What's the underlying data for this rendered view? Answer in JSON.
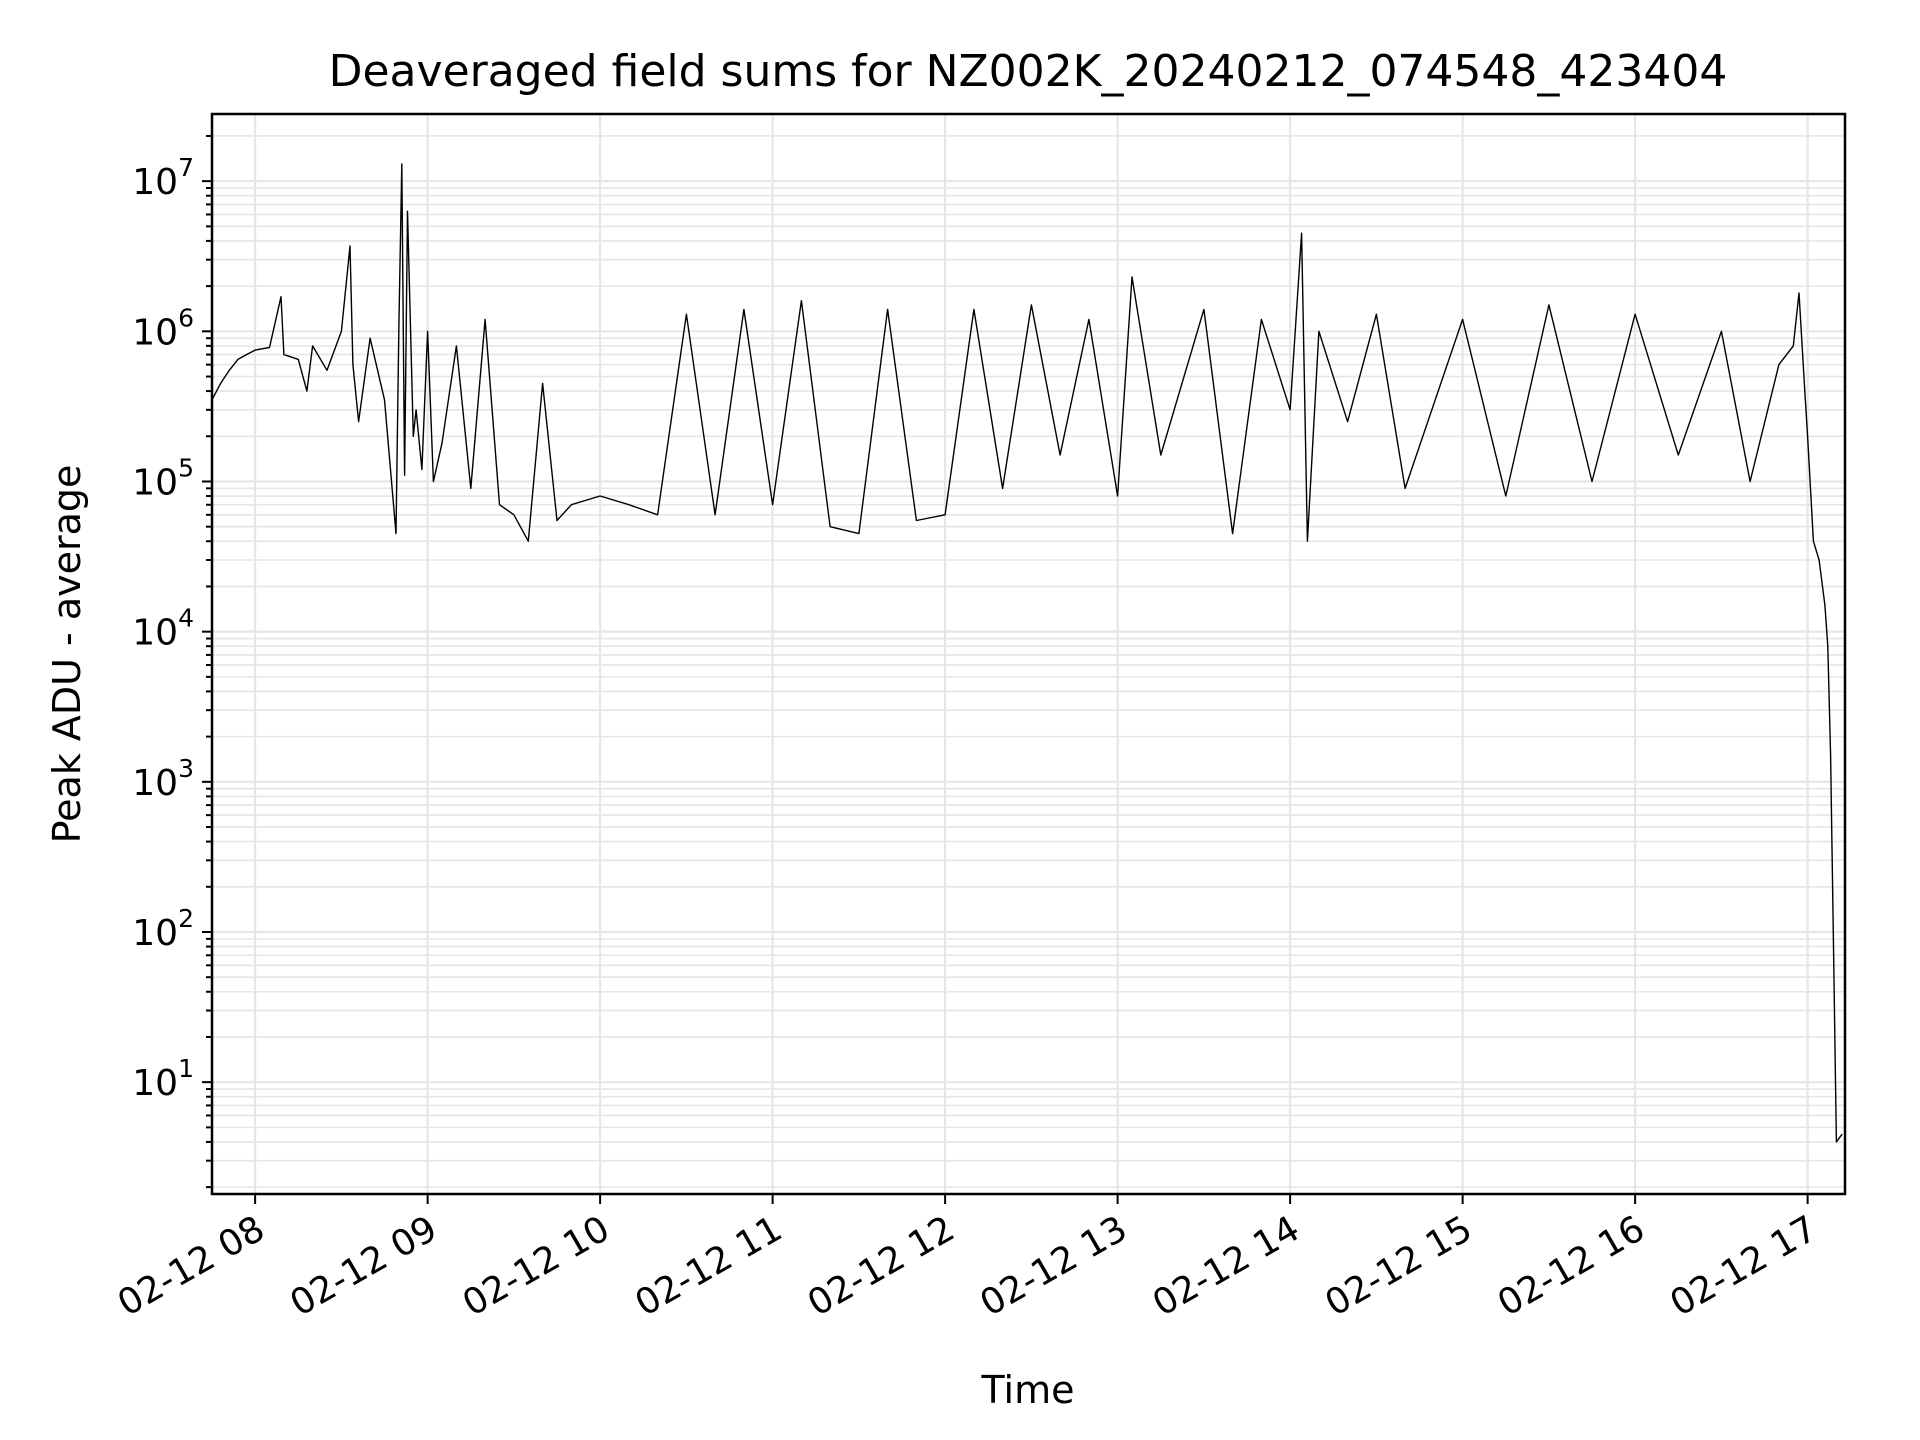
{
  "chart_data": {
    "type": "line",
    "title": "Deaveraged field sums for NZ002K_20240212_074548_423404",
    "xlabel": "Time",
    "ylabel": "Peak ADU - average",
    "yscale": "log",
    "xlim": [
      "2024-02-12 07:45",
      "2024-02-12 17:13"
    ],
    "ylim": [
      1.8,
      28000000
    ],
    "grid": true,
    "line_color": "#000000",
    "grid_color": "#e6e6e6",
    "x_ticks": [
      {
        "value": "2024-02-12 08:00",
        "label": "02-12 08"
      },
      {
        "value": "2024-02-12 09:00",
        "label": "02-12 09"
      },
      {
        "value": "2024-02-12 10:00",
        "label": "02-12 10"
      },
      {
        "value": "2024-02-12 11:00",
        "label": "02-12 11"
      },
      {
        "value": "2024-02-12 12:00",
        "label": "02-12 12"
      },
      {
        "value": "2024-02-12 13:00",
        "label": "02-12 13"
      },
      {
        "value": "2024-02-12 14:00",
        "label": "02-12 14"
      },
      {
        "value": "2024-02-12 15:00",
        "label": "02-12 15"
      },
      {
        "value": "2024-02-12 16:00",
        "label": "02-12 16"
      },
      {
        "value": "2024-02-12 17:00",
        "label": "02-12 17"
      }
    ],
    "y_ticks": [
      {
        "value": 10,
        "base": "10",
        "exp": "1"
      },
      {
        "value": 100,
        "base": "10",
        "exp": "2"
      },
      {
        "value": 1000,
        "base": "10",
        "exp": "3"
      },
      {
        "value": 10000,
        "base": "10",
        "exp": "4"
      },
      {
        "value": 100000,
        "base": "10",
        "exp": "5"
      },
      {
        "value": 1000000,
        "base": "10",
        "exp": "6"
      },
      {
        "value": 10000000,
        "base": "10",
        "exp": "7"
      }
    ],
    "series": [
      {
        "points": [
          [
            "2024-02-12 07:45",
            350000
          ],
          [
            "2024-02-12 07:48",
            450000
          ],
          [
            "2024-02-12 07:51",
            550000
          ],
          [
            "2024-02-12 07:54",
            650000
          ],
          [
            "2024-02-12 07:57",
            700000
          ],
          [
            "2024-02-12 08:00",
            750000
          ],
          [
            "2024-02-12 08:05",
            780000
          ],
          [
            "2024-02-12 08:09",
            1700000
          ],
          [
            "2024-02-12 08:10",
            700000
          ],
          [
            "2024-02-12 08:15",
            650000
          ],
          [
            "2024-02-12 08:18",
            400000
          ],
          [
            "2024-02-12 08:20",
            800000
          ],
          [
            "2024-02-12 08:25",
            550000
          ],
          [
            "2024-02-12 08:30",
            1000000
          ],
          [
            "2024-02-12 08:33",
            3700000
          ],
          [
            "2024-02-12 08:34",
            600000
          ],
          [
            "2024-02-12 08:36",
            250000
          ],
          [
            "2024-02-12 08:40",
            900000
          ],
          [
            "2024-02-12 08:45",
            350000
          ],
          [
            "2024-02-12 08:50",
            1100000
          ],
          [
            "2024-02-12 08:55",
            200000
          ],
          [
            "2024-02-12 09:00",
            1000000
          ],
          [
            "2024-02-12 08:58",
            120000
          ],
          [
            "2024-02-12 08:52",
            110000
          ],
          [
            "2024-02-12 09:02",
            100000
          ],
          [
            "2024-02-12 08:49",
            45000
          ],
          [
            "2024-02-12 08:51",
            13000000
          ],
          [
            "2024-02-12 08:53",
            6300000
          ],
          [
            "2024-02-12 08:56",
            300000
          ],
          [
            "2024-02-12 09:05",
            180000
          ],
          [
            "2024-02-12 09:10",
            800000
          ],
          [
            "2024-02-12 09:15",
            90000
          ],
          [
            "2024-02-12 09:20",
            1200000
          ],
          [
            "2024-02-12 09:25",
            70000
          ],
          [
            "2024-02-12 09:30",
            60000
          ],
          [
            "2024-02-12 09:35",
            40000
          ],
          [
            "2024-02-12 09:40",
            450000
          ],
          [
            "2024-02-12 09:45",
            55000
          ],
          [
            "2024-02-12 09:50",
            70000
          ],
          [
            "2024-02-12 10:00",
            80000
          ],
          [
            "2024-02-12 10:10",
            70000
          ],
          [
            "2024-02-12 10:20",
            60000
          ],
          [
            "2024-02-12 10:30",
            1300000
          ],
          [
            "2024-02-12 10:40",
            60000
          ],
          [
            "2024-02-12 10:50",
            1400000
          ],
          [
            "2024-02-12 11:00",
            70000
          ],
          [
            "2024-02-12 11:10",
            1600000
          ],
          [
            "2024-02-12 11:20",
            50000
          ],
          [
            "2024-02-12 11:30",
            45000
          ],
          [
            "2024-02-12 11:40",
            1400000
          ],
          [
            "2024-02-12 11:50",
            55000
          ],
          [
            "2024-02-12 12:00",
            60000
          ],
          [
            "2024-02-12 12:10",
            1400000
          ],
          [
            "2024-02-12 12:20",
            90000
          ],
          [
            "2024-02-12 12:30",
            1500000
          ],
          [
            "2024-02-12 12:40",
            150000
          ],
          [
            "2024-02-12 12:50",
            1200000
          ],
          [
            "2024-02-12 13:00",
            80000
          ],
          [
            "2024-02-12 13:05",
            2300000
          ],
          [
            "2024-02-12 13:15",
            150000
          ],
          [
            "2024-02-12 13:30",
            1400000
          ],
          [
            "2024-02-12 13:40",
            45000
          ],
          [
            "2024-02-12 13:50",
            1200000
          ],
          [
            "2024-02-12 14:00",
            300000
          ],
          [
            "2024-02-12 14:04",
            4500000
          ],
          [
            "2024-02-12 14:06",
            40000
          ],
          [
            "2024-02-12 14:10",
            1000000
          ],
          [
            "2024-02-12 14:20",
            250000
          ],
          [
            "2024-02-12 14:30",
            1300000
          ],
          [
            "2024-02-12 14:40",
            90000
          ],
          [
            "2024-02-12 15:00",
            1200000
          ],
          [
            "2024-02-12 15:15",
            80000
          ],
          [
            "2024-02-12 15:30",
            1500000
          ],
          [
            "2024-02-12 15:45",
            100000
          ],
          [
            "2024-02-12 16:00",
            1300000
          ],
          [
            "2024-02-12 16:15",
            150000
          ],
          [
            "2024-02-12 16:30",
            1000000
          ],
          [
            "2024-02-12 16:40",
            100000
          ],
          [
            "2024-02-12 16:50",
            600000
          ],
          [
            "2024-02-12 16:55",
            800000
          ],
          [
            "2024-02-12 16:57",
            1800000
          ],
          [
            "2024-02-12 16:59",
            400000
          ],
          [
            "2024-02-12 17:00",
            200000
          ],
          [
            "2024-02-12 17:02",
            40000
          ],
          [
            "2024-02-12 17:04",
            30000
          ],
          [
            "2024-02-12 17:06",
            15000
          ],
          [
            "2024-02-12 17:07",
            8000
          ],
          [
            "2024-02-12 17:08",
            1500
          ],
          [
            "2024-02-12 17:09",
            80
          ],
          [
            "2024-02-12 17:10",
            4
          ],
          [
            "2024-02-12 17:12",
            4.5
          ]
        ]
      }
    ]
  }
}
